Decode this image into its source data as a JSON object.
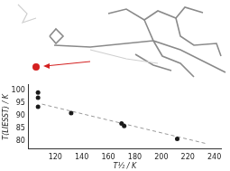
{
  "chart_data": {
    "type": "scatter",
    "x_label": "T½ / K",
    "y_label": "T(LIESST) / K",
    "series": [
      {
        "type": "scatter",
        "color": "#1a1a1a",
        "marker": "circle",
        "x": [
          107,
          107,
          107,
          132,
          170,
          172,
          212
        ],
        "values": [
          99,
          97,
          93.5,
          91,
          87,
          86,
          81
        ]
      },
      {
        "type": "line",
        "color": "#999999",
        "line_style": "dashed",
        "x": [
          110,
          235
        ],
        "values": [
          94.5,
          79
        ]
      }
    ],
    "xlim": [
      100,
      245
    ],
    "xticks": [
      120,
      140,
      160,
      180,
      200,
      220,
      240
    ],
    "ylim": [
      77,
      102
    ],
    "yticks": [
      80,
      85,
      90,
      95,
      100
    ],
    "grid": false
  }
}
